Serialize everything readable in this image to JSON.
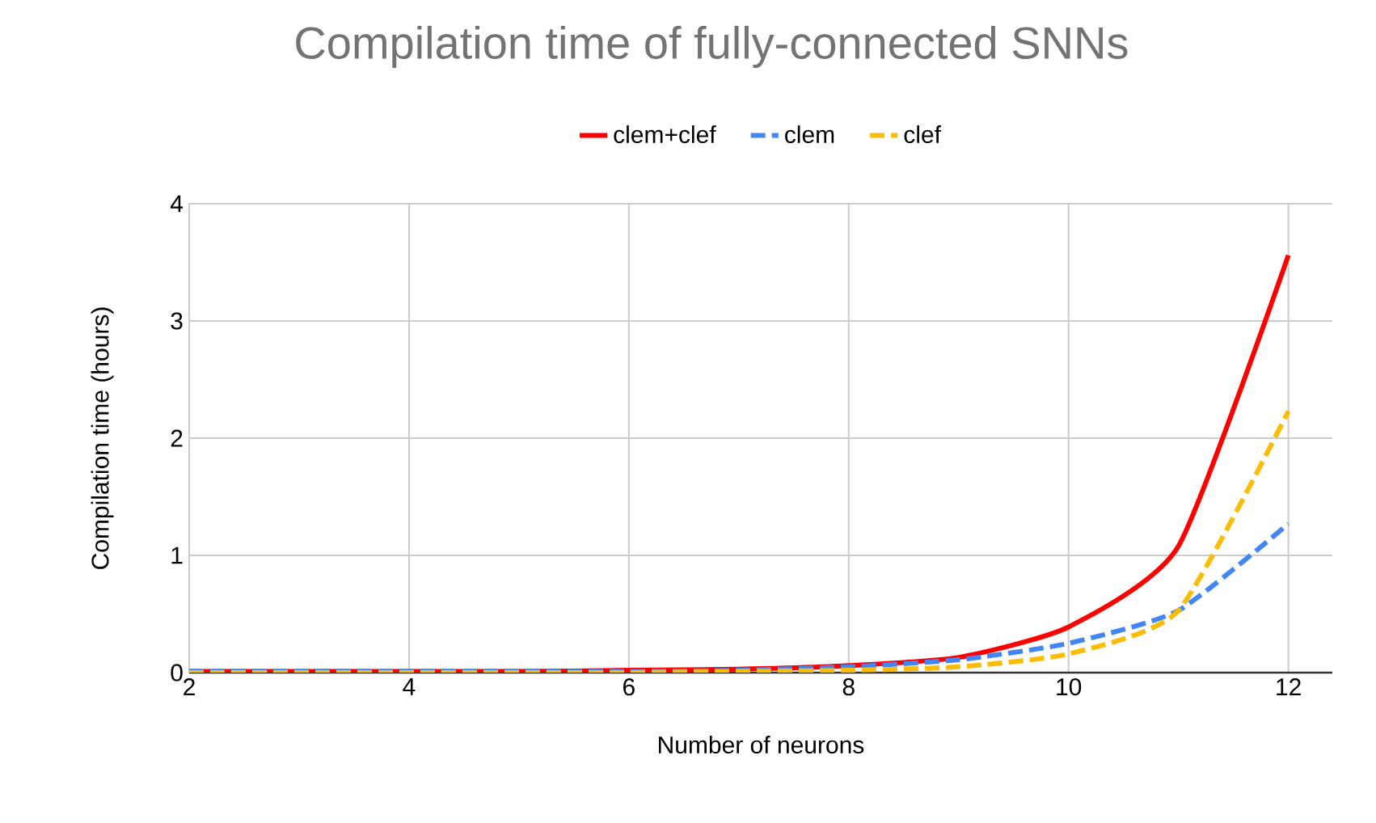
{
  "chart_data": {
    "type": "line",
    "title": "Compilation time of fully-connected SNNs",
    "xlabel": "Number of neurons",
    "ylabel": "Compilation time (hours)",
    "x": [
      2,
      3,
      4,
      5,
      6,
      7,
      8,
      9,
      10,
      11,
      12
    ],
    "series": [
      {
        "name": "clem+clef",
        "color": "#ff0000",
        "line_style": "solid",
        "values": [
          0.01,
          0.01,
          0.01,
          0.01,
          0.02,
          0.03,
          0.06,
          0.13,
          0.39,
          1.08,
          3.56
        ]
      },
      {
        "name": "clem",
        "color": "#4285f4",
        "line_style": "dashed",
        "values": [
          0.01,
          0.01,
          0.01,
          0.01,
          0.01,
          0.02,
          0.05,
          0.11,
          0.25,
          0.53,
          1.27
        ]
      },
      {
        "name": "clef",
        "color": "#fbbc04",
        "line_style": "dashed",
        "values": [
          0,
          0,
          0,
          0,
          0,
          0.01,
          0.02,
          0.05,
          0.16,
          0.53,
          2.23
        ]
      }
    ],
    "xlim": [
      2,
      12.4
    ],
    "ylim": [
      0,
      4
    ],
    "xticks": [
      2,
      4,
      6,
      8,
      10,
      12
    ],
    "yticks": [
      0,
      1,
      2,
      3,
      4
    ],
    "grid": true,
    "legend": "top",
    "marker": "none"
  }
}
